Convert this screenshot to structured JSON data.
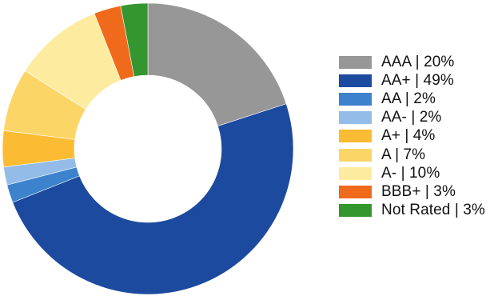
{
  "chart_data": {
    "type": "pie",
    "variant": "donut",
    "categories": [
      "AAA",
      "AA+",
      "AA",
      "AA-",
      "A+",
      "A",
      "A-",
      "BBB+",
      "Not Rated"
    ],
    "values": [
      20,
      49,
      2,
      2,
      4,
      7,
      10,
      3,
      3
    ],
    "unit": "%",
    "colors": [
      "#979797",
      "#1c4a9e",
      "#3d82cc",
      "#94bce8",
      "#fbbc33",
      "#fcd567",
      "#fdeca0",
      "#f06a1c",
      "#34962f"
    ],
    "legend": {
      "position": "right",
      "labels": [
        "AAA | 20%",
        "AA+ | 49%",
        "AA | 2%",
        "AA- | 2%",
        "A+ | 4%",
        "A | 7%",
        "A- | 10%",
        "BBB+ | 3%",
        "Not Rated | 3%"
      ]
    },
    "title": ""
  }
}
